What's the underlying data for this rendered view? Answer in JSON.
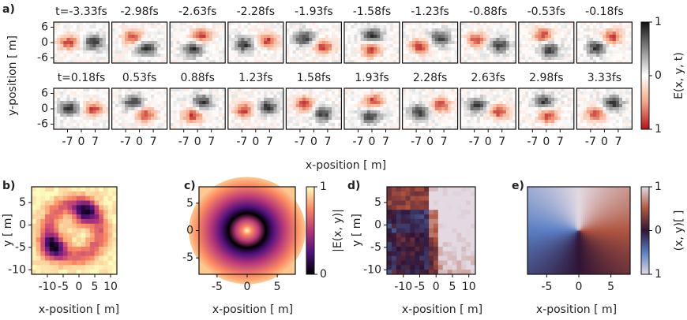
{
  "panel_a": {
    "label": "a)",
    "times": [
      "t=-3.33fs",
      "-2.98fs",
      "-2.63fs",
      "-2.28fs",
      "-1.93fs",
      "-1.58fs",
      "-1.23fs",
      "-0.88fs",
      "-0.53fs",
      "-0.18fs",
      "t=0.18fs",
      "0.53fs",
      "0.88fs",
      "1.23fs",
      "1.58fs",
      "1.93fs",
      "2.28fs",
      "2.63fs",
      "2.98fs",
      "3.33fs"
    ],
    "xticks": [
      -7,
      0,
      7
    ],
    "xlim": [
      -14,
      14
    ],
    "yticks": [
      6,
      0,
      -6
    ],
    "ylim": [
      -8,
      8
    ],
    "xlabel": "x-position [ m]",
    "ylabel": "y-position [ m]",
    "colorbar": {
      "label": "E(x, y, t)",
      "ticks": [
        1,
        0,
        {
          "value": -1,
          "label": "1"
        }
      ],
      "lim": [
        -1,
        1
      ]
    }
  },
  "panel_b": {
    "label": "b)",
    "xticks": [
      -10,
      -5,
      0,
      5,
      10
    ],
    "xlim": [
      -15,
      12
    ],
    "yticks": [
      5,
      0,
      -5,
      -10
    ],
    "ylim": [
      -11,
      8.5
    ],
    "xlabel": "x-position [ m]",
    "ylabel": "y [ m]"
  },
  "panel_c": {
    "label": "c)",
    "xticks": [
      -5,
      0,
      5
    ],
    "xlim": [
      -8,
      8
    ],
    "yticks": [
      5,
      0,
      -5
    ],
    "ylim": [
      -8,
      8
    ],
    "xlabel": "x-position [ m]",
    "colorbar": {
      "label": "|E(x, y)|",
      "ticks": [
        1,
        0
      ],
      "lim": [
        0,
        1
      ]
    }
  },
  "panel_d": {
    "label": "d)",
    "xticks": [
      -10,
      -5,
      0,
      5,
      10
    ],
    "xlim": [
      -15,
      12
    ],
    "yticks": [
      5,
      0,
      -5,
      -10
    ],
    "ylim": [
      -11,
      8.5
    ],
    "xlabel": "x-position [ m]",
    "ylabel": "y [ m]"
  },
  "panel_e": {
    "label": "e)",
    "xticks": [
      -5,
      0,
      5
    ],
    "xlim": [
      -8,
      8
    ],
    "ylim": [
      -8,
      8
    ],
    "xlabel": "x-position [ m]",
    "colorbar": {
      "label": "(x, y)[ ]",
      "ticks": [
        1,
        0,
        {
          "value": -1,
          "label": "1"
        }
      ],
      "lim": [
        -1,
        1
      ]
    }
  }
}
